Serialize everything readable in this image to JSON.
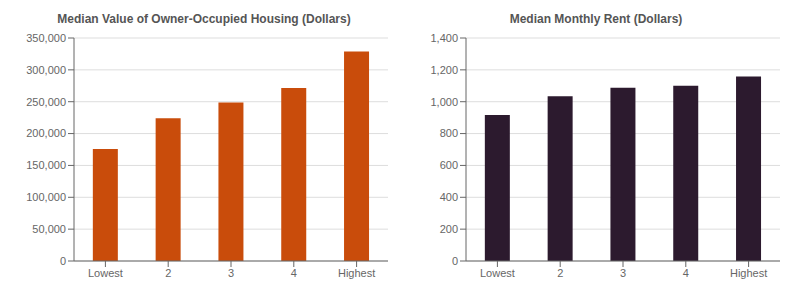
{
  "chart_data": [
    {
      "type": "bar",
      "title": "Median Value of Owner-Occupied Housing (Dollars)",
      "categories": [
        "Lowest",
        "2",
        "3",
        "4",
        "Highest"
      ],
      "values": [
        175861,
        224180,
        248819,
        271710,
        328754
      ],
      "color": "#C94C0B",
      "ylim": [
        0,
        350000
      ],
      "yticks": [
        0,
        {
          "value": 50000,
          "label": "50,000"
        },
        {
          "value": 100000,
          "label": "100,000"
        },
        {
          "value": 150000,
          "label": "150,000"
        },
        {
          "value": 200000,
          "label": "200,000"
        },
        {
          "value": 250000,
          "label": "250,000"
        },
        {
          "value": 300000,
          "label": "300,000"
        },
        {
          "value": 350000,
          "label": "350,000"
        }
      ],
      "grid": true
    },
    {
      "type": "bar",
      "title": "Median Monthly Rent (Dollars)",
      "categories": [
        "Lowest",
        "2",
        "3",
        "4",
        "Highest"
      ],
      "values": [
        917,
        1034,
        1087,
        1100,
        1158
      ],
      "color": "#2C1A2E",
      "ylim": [
        0,
        1400
      ],
      "yticks": [
        0,
        200,
        400,
        600,
        800,
        {
          "value": 1000,
          "label": "1,000"
        },
        {
          "value": 1200,
          "label": "1,200"
        },
        {
          "value": 1400,
          "label": "1,400"
        }
      ],
      "grid": true
    }
  ]
}
